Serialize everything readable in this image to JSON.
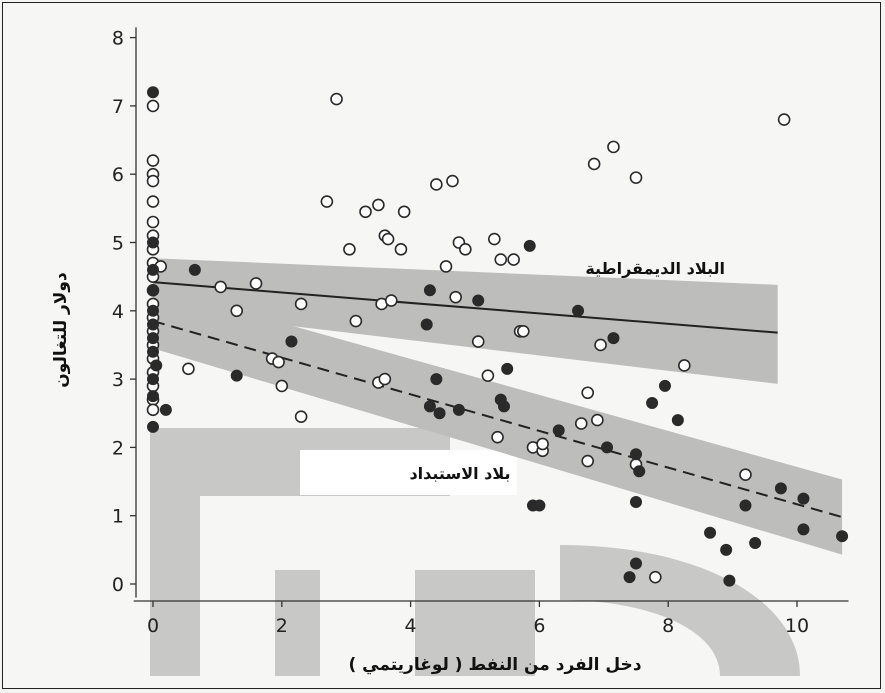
{
  "chart_data": {
    "type": "scatter",
    "xlabel": "دخل الفرد من النفط ( لوغاريتمي )",
    "ylabel": "دولار للتغالون",
    "xlim": [
      -0.3,
      11
    ],
    "ylim": [
      -0.2,
      8.2
    ],
    "x_ticks": [
      0,
      2,
      4,
      6,
      8,
      10
    ],
    "y_ticks": [
      0,
      1,
      2,
      3,
      4,
      5,
      6,
      7,
      8
    ],
    "grid": false,
    "annotations": {
      "democracies": "البلاد الديمقراطية",
      "autocracies": "بلاد الاستبداد"
    },
    "series": [
      {
        "marker": "open-circle",
        "fit_line": {
          "style": "solid",
          "x": [
            0,
            9.7
          ],
          "y": [
            4.42,
            3.68
          ]
        },
        "points": [
          [
            0,
            6.2
          ],
          [
            0,
            6.0
          ],
          [
            0,
            5.9
          ],
          [
            0,
            5.6
          ],
          [
            0,
            5.3
          ],
          [
            0,
            5.1
          ],
          [
            0,
            4.9
          ],
          [
            0,
            4.7
          ],
          [
            0,
            4.5
          ],
          [
            0,
            4.3
          ],
          [
            0,
            4.1
          ],
          [
            0,
            3.9
          ],
          [
            0,
            3.7
          ],
          [
            0,
            3.5
          ],
          [
            0,
            3.3
          ],
          [
            0,
            3.1
          ],
          [
            0,
            2.9
          ],
          [
            0,
            2.7
          ],
          [
            0,
            2.55
          ],
          [
            0,
            7.0
          ],
          [
            0.12,
            4.65
          ],
          [
            0.55,
            3.15
          ],
          [
            1.05,
            4.35
          ],
          [
            1.3,
            4.0
          ],
          [
            1.6,
            4.4
          ],
          [
            1.85,
            3.3
          ],
          [
            1.95,
            3.25
          ],
          [
            2.0,
            2.9
          ],
          [
            2.3,
            4.1
          ],
          [
            2.3,
            2.45
          ],
          [
            2.7,
            5.6
          ],
          [
            2.85,
            7.1
          ],
          [
            3.05,
            4.9
          ],
          [
            3.15,
            3.85
          ],
          [
            3.3,
            5.45
          ],
          [
            3.5,
            5.55
          ],
          [
            3.5,
            2.95
          ],
          [
            3.55,
            4.1
          ],
          [
            3.6,
            3.0
          ],
          [
            3.6,
            5.1
          ],
          [
            3.65,
            5.05
          ],
          [
            3.7,
            4.15
          ],
          [
            3.85,
            4.9
          ],
          [
            3.9,
            5.45
          ],
          [
            4.4,
            5.85
          ],
          [
            4.55,
            4.65
          ],
          [
            4.65,
            5.9
          ],
          [
            4.7,
            4.2
          ],
          [
            4.75,
            5.0
          ],
          [
            4.85,
            4.9
          ],
          [
            5.05,
            3.55
          ],
          [
            5.2,
            3.05
          ],
          [
            5.3,
            5.05
          ],
          [
            5.35,
            2.15
          ],
          [
            5.4,
            4.75
          ],
          [
            5.6,
            4.75
          ],
          [
            5.7,
            3.7
          ],
          [
            5.75,
            3.7
          ],
          [
            5.9,
            2.0
          ],
          [
            6.05,
            1.95
          ],
          [
            6.05,
            2.05
          ],
          [
            6.65,
            2.35
          ],
          [
            6.75,
            2.8
          ],
          [
            6.75,
            1.8
          ],
          [
            6.85,
            6.15
          ],
          [
            6.9,
            2.4
          ],
          [
            6.95,
            3.5
          ],
          [
            7.15,
            6.4
          ],
          [
            7.5,
            5.95
          ],
          [
            7.5,
            1.75
          ],
          [
            7.8,
            0.1
          ],
          [
            8.25,
            3.2
          ],
          [
            9.2,
            1.6
          ],
          [
            9.8,
            6.8
          ]
        ]
      },
      {
        "marker": "filled-circle",
        "fit_line": {
          "style": "dashed",
          "x": [
            0,
            10.7
          ],
          "y": [
            3.85,
            0.98
          ]
        },
        "points": [
          [
            0,
            7.2
          ],
          [
            0,
            5.0
          ],
          [
            0,
            4.6
          ],
          [
            0,
            4.3
          ],
          [
            0,
            4.0
          ],
          [
            0,
            3.8
          ],
          [
            0,
            3.6
          ],
          [
            0,
            3.4
          ],
          [
            0,
            3.0
          ],
          [
            0,
            2.75
          ],
          [
            0,
            2.3
          ],
          [
            0.05,
            3.2
          ],
          [
            0.2,
            2.55
          ],
          [
            0.65,
            4.6
          ],
          [
            1.3,
            3.05
          ],
          [
            2.15,
            3.55
          ],
          [
            4.25,
            3.8
          ],
          [
            4.3,
            4.3
          ],
          [
            4.3,
            2.6
          ],
          [
            4.4,
            3.0
          ],
          [
            4.45,
            2.5
          ],
          [
            4.75,
            2.55
          ],
          [
            5.05,
            4.15
          ],
          [
            5.4,
            2.7
          ],
          [
            5.45,
            2.6
          ],
          [
            5.5,
            3.15
          ],
          [
            5.85,
            4.95
          ],
          [
            5.9,
            1.15
          ],
          [
            6.0,
            1.15
          ],
          [
            6.3,
            2.25
          ],
          [
            6.6,
            4.0
          ],
          [
            7.05,
            2.0
          ],
          [
            7.15,
            3.6
          ],
          [
            7.5,
            0.3
          ],
          [
            7.5,
            1.9
          ],
          [
            7.5,
            1.2
          ],
          [
            7.55,
            1.65
          ],
          [
            7.4,
            0.1
          ],
          [
            7.75,
            2.65
          ],
          [
            7.95,
            2.9
          ],
          [
            8.15,
            2.4
          ],
          [
            8.65,
            0.75
          ],
          [
            8.9,
            0.5
          ],
          [
            8.95,
            0.05
          ],
          [
            9.2,
            1.15
          ],
          [
            9.35,
            0.6
          ],
          [
            9.75,
            1.4
          ],
          [
            10.1,
            1.25
          ],
          [
            10.1,
            0.8
          ],
          [
            10.7,
            0.7
          ]
        ]
      }
    ]
  }
}
